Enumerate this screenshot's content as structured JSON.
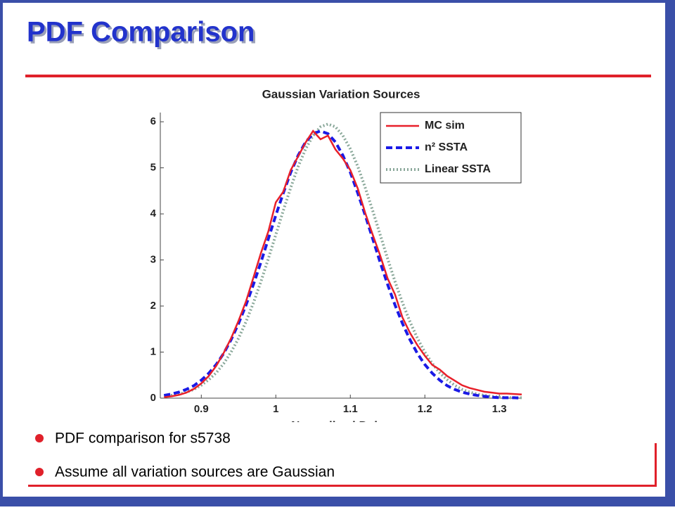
{
  "slide": {
    "title": "PDF Comparison",
    "bullets": [
      "PDF comparison for s5738",
      "Assume all variation sources are Gaussian"
    ]
  },
  "chart_data": {
    "type": "line",
    "title": "Gaussian Variation Sources",
    "xlabel": "Normalized Delay",
    "x": [
      0.85,
      0.86,
      0.87,
      0.88,
      0.89,
      0.9,
      0.91,
      0.92,
      0.93,
      0.94,
      0.95,
      0.96,
      0.97,
      0.98,
      0.99,
      1.0,
      1.01,
      1.02,
      1.03,
      1.04,
      1.05,
      1.06,
      1.07,
      1.08,
      1.09,
      1.1,
      1.11,
      1.12,
      1.13,
      1.14,
      1.15,
      1.16,
      1.17,
      1.18,
      1.19,
      1.2,
      1.21,
      1.22,
      1.23,
      1.24,
      1.25,
      1.26,
      1.27,
      1.28,
      1.29,
      1.3,
      1.31,
      1.32,
      1.33
    ],
    "series": [
      {
        "name": "MC sim",
        "color": "#e8202a",
        "dash": "solid",
        "values": [
          0.02,
          0.04,
          0.07,
          0.12,
          0.2,
          0.32,
          0.48,
          0.7,
          0.98,
          1.3,
          1.68,
          2.1,
          2.62,
          3.15,
          3.62,
          4.25,
          4.48,
          4.95,
          5.25,
          5.55,
          5.8,
          5.62,
          5.7,
          5.4,
          5.2,
          4.95,
          4.55,
          4.02,
          3.55,
          3.1,
          2.6,
          2.25,
          1.75,
          1.42,
          1.15,
          0.92,
          0.72,
          0.62,
          0.48,
          0.38,
          0.28,
          0.22,
          0.18,
          0.14,
          0.12,
          0.1,
          0.1,
          0.09,
          0.08
        ]
      },
      {
        "name": "n² SSTA",
        "color": "#1a1ae6",
        "dash": "dashed",
        "values": [
          0.06,
          0.09,
          0.13,
          0.19,
          0.27,
          0.39,
          0.54,
          0.73,
          0.97,
          1.27,
          1.62,
          2.02,
          2.47,
          2.95,
          3.46,
          3.97,
          4.45,
          4.9,
          5.27,
          5.56,
          5.74,
          5.8,
          5.74,
          5.56,
          5.27,
          4.9,
          4.45,
          3.97,
          3.46,
          2.95,
          2.47,
          2.02,
          1.62,
          1.27,
          0.97,
          0.73,
          0.54,
          0.39,
          0.27,
          0.19,
          0.13,
          0.09,
          0.06,
          0.04,
          0.02,
          0.01,
          0.01,
          0.01,
          0.0
        ]
      },
      {
        "name": "Linear SSTA",
        "color": "#8aa89a",
        "dash": "dotted",
        "values": [
          0.04,
          0.06,
          0.09,
          0.13,
          0.19,
          0.28,
          0.4,
          0.55,
          0.75,
          1.0,
          1.3,
          1.66,
          2.07,
          2.53,
          3.03,
          3.55,
          4.07,
          4.57,
          5.03,
          5.41,
          5.7,
          5.89,
          5.95,
          5.89,
          5.7,
          5.41,
          5.03,
          4.57,
          4.07,
          3.55,
          3.03,
          2.53,
          2.07,
          1.66,
          1.3,
          1.0,
          0.75,
          0.55,
          0.4,
          0.28,
          0.19,
          0.13,
          0.09,
          0.06,
          0.04,
          0.02,
          0.01,
          0.01,
          0.01
        ]
      }
    ],
    "xlim": [
      0.845,
      1.33
    ],
    "xticks": [
      0.9,
      1,
      1.1,
      1.2,
      1.3
    ],
    "ylim": [
      0,
      6.2
    ],
    "yticks": [
      0,
      1,
      2,
      3,
      4,
      5,
      6
    ],
    "legend": "upper right"
  }
}
